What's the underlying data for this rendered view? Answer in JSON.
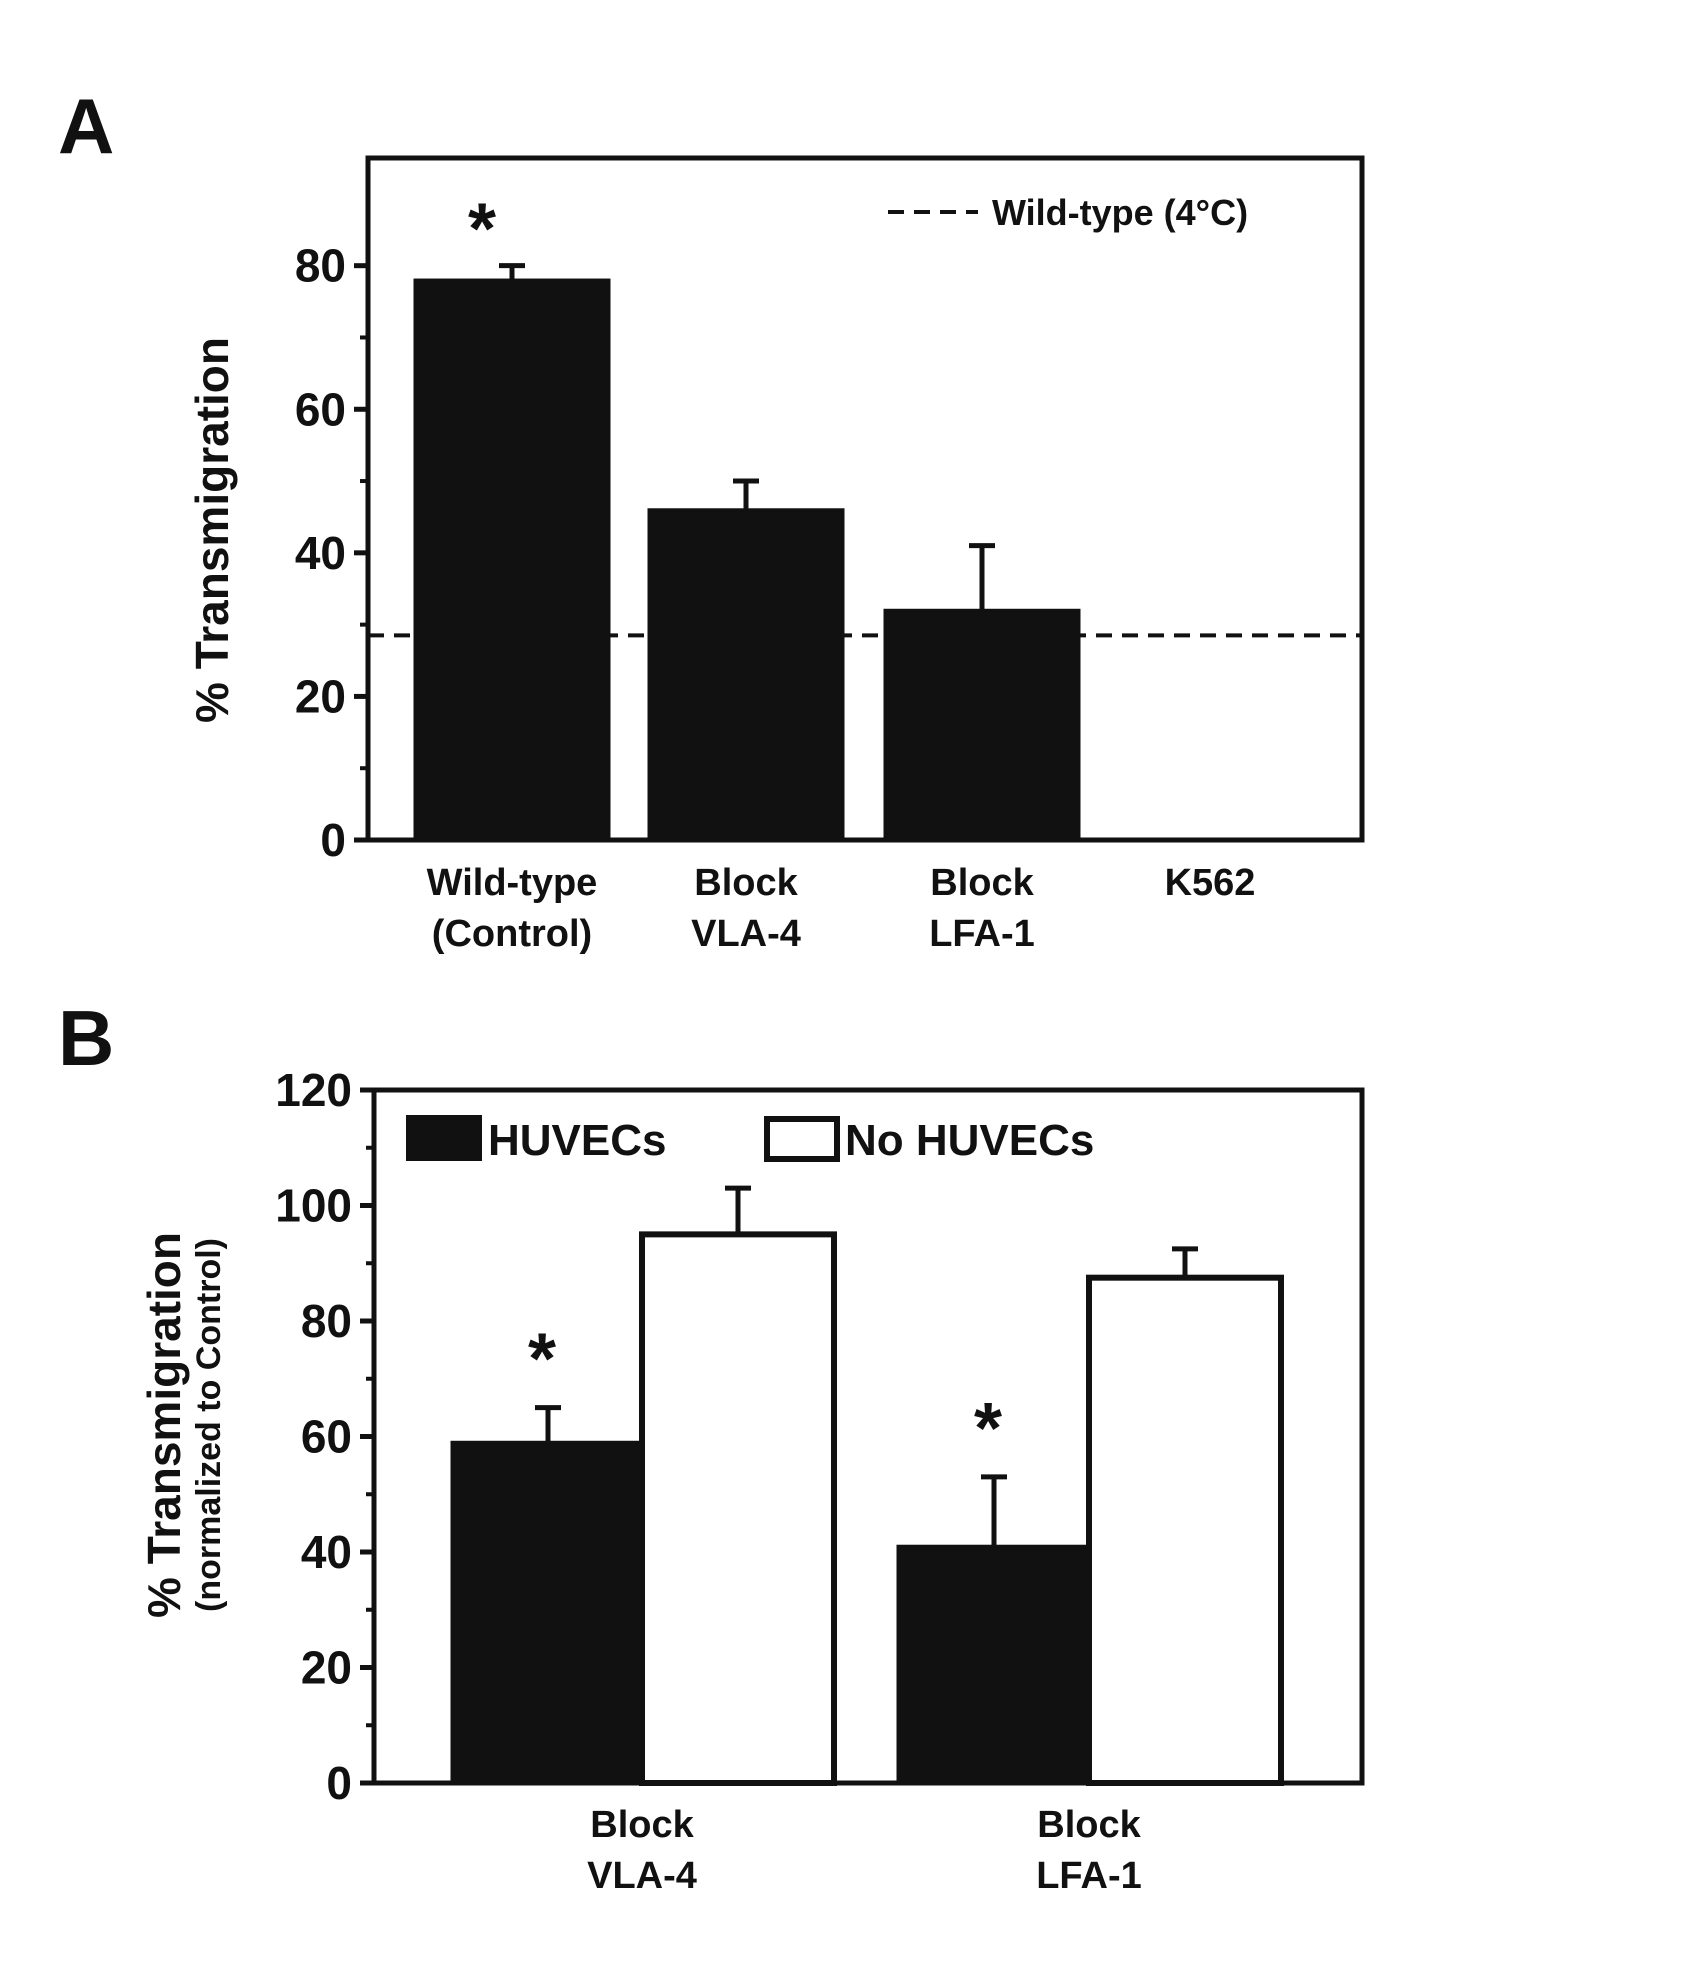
{
  "chart_data": [
    {
      "panel": "A",
      "type": "bar",
      "ylabel": "% Transmigration",
      "ylim": [
        0,
        95
      ],
      "yticks": [
        0,
        20,
        40,
        60,
        80
      ],
      "categories": [
        [
          "Wild-type",
          "(Control)"
        ],
        [
          "Block",
          "VLA-4"
        ],
        [
          "Block",
          "LFA-1"
        ],
        [
          "K562"
        ]
      ],
      "values": [
        78,
        46,
        32,
        0
      ],
      "errors": [
        2,
        4,
        9,
        0
      ],
      "significance": [
        "*",
        "",
        "",
        ""
      ],
      "reference_line": {
        "label": "Wild-type (4°C)",
        "value": 28.5,
        "style": "dashed"
      },
      "bar_color": "#111111",
      "grid": false,
      "legend_position": "top-right"
    },
    {
      "panel": "B",
      "type": "bar",
      "ylabel": "% Transmigration",
      "ylabel_sub": "(normalized to Control)",
      "ylim": [
        0,
        120
      ],
      "yticks": [
        0,
        20,
        40,
        60,
        80,
        100,
        120
      ],
      "categories": [
        [
          "Block",
          "VLA-4"
        ],
        [
          "Block",
          "LFA-1"
        ]
      ],
      "series": [
        {
          "name": "HUVECs",
          "values": [
            59,
            41
          ],
          "errors": [
            6,
            12
          ],
          "significance": [
            "*",
            "*"
          ],
          "color": "#111111"
        },
        {
          "name": "No HUVECs",
          "values": [
            95,
            87.5
          ],
          "errors": [
            8,
            5
          ],
          "significance": [
            "",
            ""
          ],
          "color": "#ffffff"
        }
      ],
      "grid": false,
      "legend_position": "top-left"
    }
  ]
}
